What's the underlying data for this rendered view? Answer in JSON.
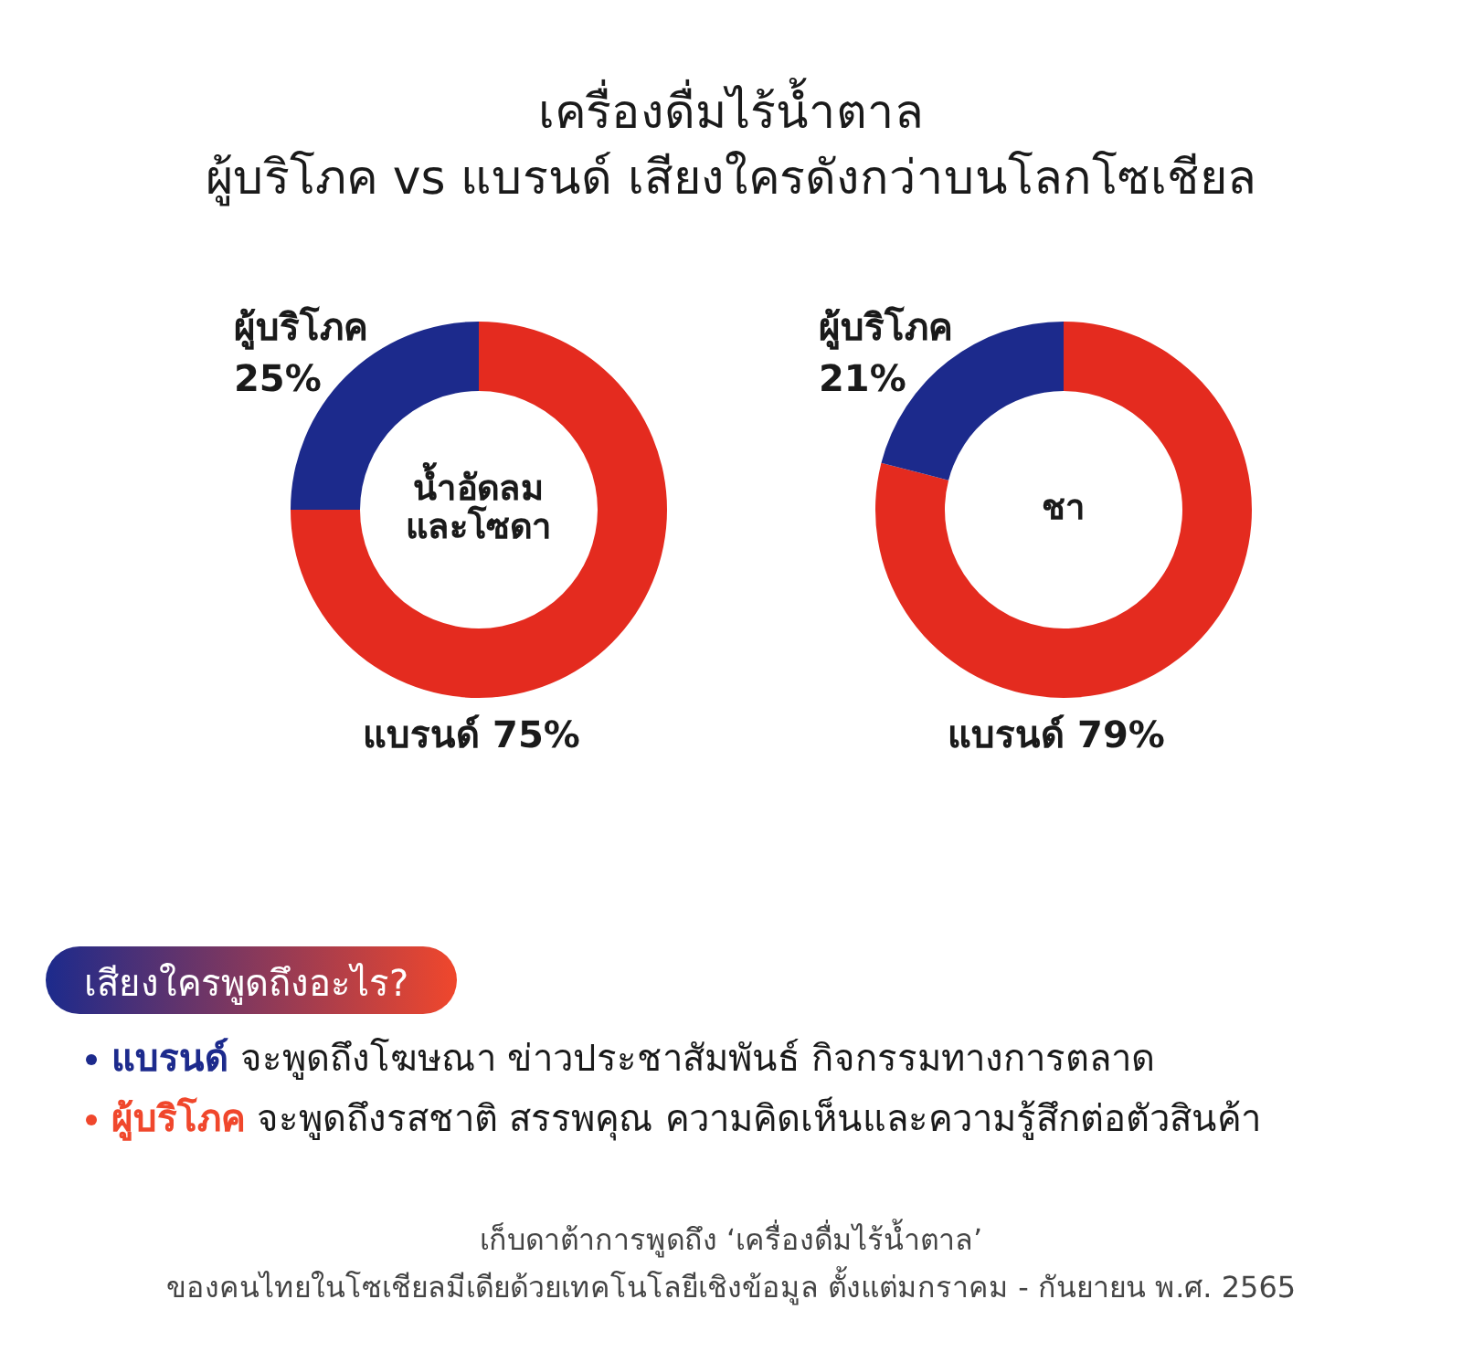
{
  "chart_data": [
    {
      "type": "other",
      "title": "เครื่องดื่มไร้น้ำตาล",
      "subtitle": "ผู้บริโภค vs แบรนด์ เสียงใครดังกว่าบนโลกโซเชียล",
      "annotations": [
        "เก็บดาต้าการพูดถึง ‘เครื่องดื่มไร้น้ำตาล’",
        "ของคนไทยในโซเชียลมีเดียด้วยเทคโนโลยีเชิงข้อมูล ตั้งแต่มกราคม - กันยายน พ.ศ. 2565"
      ]
    },
    {
      "type": "donut",
      "title": "น้ำอัดลม และโซดา",
      "categories": [
        "แบรนด์",
        "ผู้บริโภค"
      ],
      "values": [
        75,
        25
      ],
      "value_labels": [
        "75%",
        "25%"
      ],
      "colors": [
        "#e42b1f",
        "#1c2a8c"
      ]
    },
    {
      "type": "donut",
      "title": "ชา",
      "categories": [
        "แบรนด์",
        "ผู้บริโภค"
      ],
      "values": [
        79,
        21
      ],
      "value_labels": [
        "79%",
        "21%"
      ],
      "colors": [
        "#e42b1f",
        "#1c2a8c"
      ]
    },
    {
      "type": "other",
      "title": "เสียงใครพูดถึงอะไร?",
      "annotations": [
        "**แบรนด์** จะพูดถึงโฆษณา ข่าวประชาสัมพันธ์ กิจกรรมทางการตลาด",
        "**ผู้บริโภค** จะพูดถึงรสชาติ สรรพคุณ ความคิดเห็นและความรู้สึกต่อตัวสินค้า"
      ],
      "colors": [
        "#1c2a8c",
        "#f0472c"
      ]
    }
  ]
}
